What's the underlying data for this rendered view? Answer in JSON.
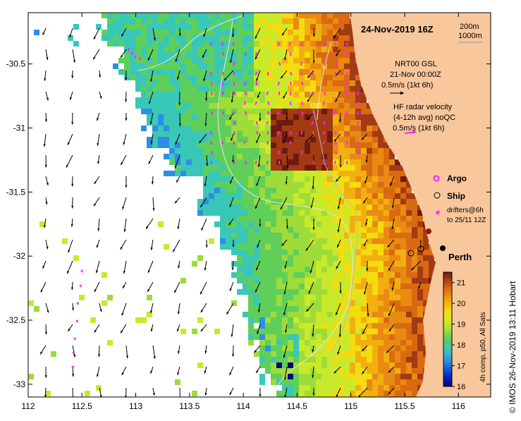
{
  "map": {
    "title": "24-Nov-2019 16Z",
    "scale_contours": [
      "200m",
      "1000m"
    ],
    "x_ticks": [
      "112",
      "112.5",
      "113",
      "113.5",
      "114",
      "114.5",
      "115",
      "115.5",
      "116"
    ],
    "y_ticks": [
      "-30.5",
      "-31",
      "-31.5",
      "-32",
      "-32.5",
      "-33"
    ],
    "lon_range": [
      112,
      116.3
    ],
    "lat_range": [
      -33.1,
      -30.1
    ]
  },
  "legend": {
    "nrt_lines": [
      "NRT00 GSL",
      "21-Nov 00:00Z",
      "0.5m/s (1kt 6h)"
    ],
    "hf_lines": [
      "HF radar velocity",
      "(4-12h avg) noQC",
      "0.5m/s (1kt 6h)"
    ],
    "argo_label": "Argo",
    "ship_label": "Ship",
    "drifters_lines": [
      "drifters@6h",
      "to 25/11 12Z"
    ]
  },
  "place": {
    "perth_label": "Perth"
  },
  "colorbar": {
    "ticks": [
      "21",
      "20",
      "19",
      "18",
      "17",
      "16"
    ],
    "min": 16,
    "max": 21.5,
    "caption": "4h comp, p50, All Sats"
  },
  "credit": "© IMOS 26-Nov-2019 13:11 Hobart",
  "colors": {
    "land": "#f8c79c",
    "argo": "#ff20ff",
    "hf_arrow": "#ff20ff",
    "arrow": "#000000",
    "contour": "#e6e6e6"
  }
}
